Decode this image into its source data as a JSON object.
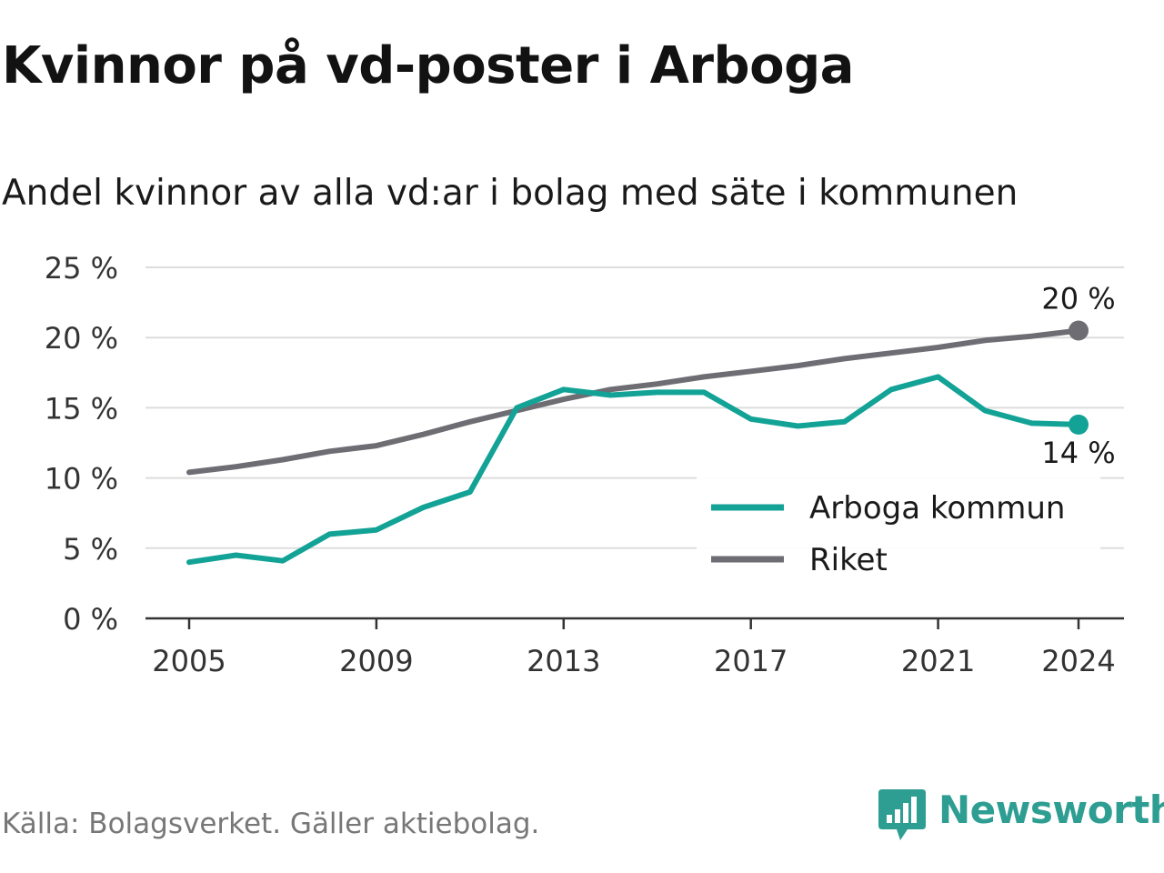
{
  "chart_data": {
    "type": "line",
    "title": "Kvinnor på vd-poster i Arboga",
    "subtitle": "Andel kvinnor av alla vd:ar i bolag med säte i kommunen",
    "x": [
      2005,
      2006,
      2007,
      2008,
      2009,
      2010,
      2011,
      2012,
      2013,
      2014,
      2015,
      2016,
      2017,
      2018,
      2019,
      2020,
      2021,
      2022,
      2023,
      2024
    ],
    "x_ticks": [
      2005,
      2009,
      2013,
      2017,
      2021,
      2024
    ],
    "y_ticks": [
      0,
      5,
      10,
      15,
      20,
      25
    ],
    "y_tick_suffix": " %",
    "ylim": [
      0,
      25
    ],
    "grid": true,
    "legend_position": "bottom-right",
    "series": [
      {
        "name": "Arboga kommun",
        "color": "#13a296",
        "values": [
          4.0,
          4.5,
          4.1,
          6.0,
          6.3,
          7.9,
          9.0,
          15.0,
          16.3,
          15.9,
          16.1,
          16.1,
          14.2,
          13.7,
          14.0,
          16.3,
          17.2,
          14.8,
          13.9,
          13.8
        ],
        "end_label": "14 %"
      },
      {
        "name": "Riket",
        "color": "#6e6d73",
        "values": [
          10.4,
          10.8,
          11.3,
          11.9,
          12.3,
          13.1,
          14.0,
          14.8,
          15.6,
          16.3,
          16.7,
          17.2,
          17.6,
          18.0,
          18.5,
          18.9,
          19.3,
          19.8,
          20.1,
          20.5
        ],
        "end_label": "20 %"
      }
    ]
  },
  "source": "Källa: Bolagsverket. Gäller aktiebolag.",
  "brand": {
    "name": "Newsworthy",
    "color": "#2e9e92",
    "icon": "bar-chart-speech-bubble-icon"
  }
}
